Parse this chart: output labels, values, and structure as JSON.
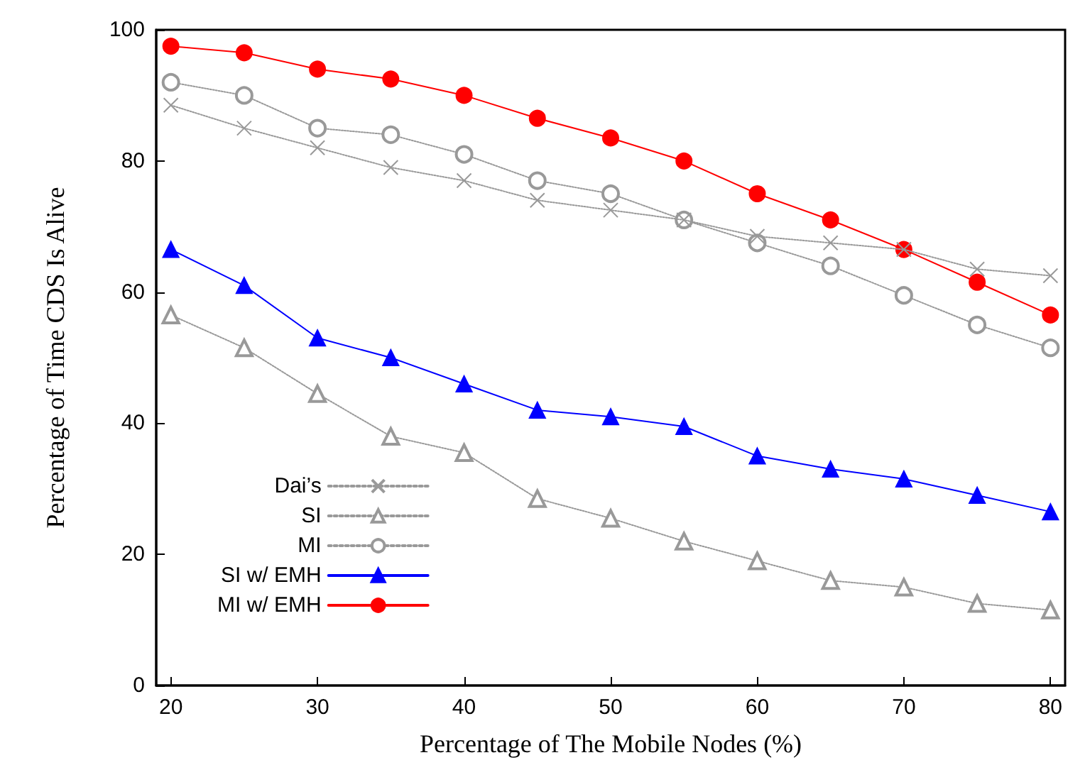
{
  "chart_data": {
    "type": "line",
    "xlabel": "Percentage of The Mobile Nodes (%)",
    "ylabel": "Percentage of Time CDS Is Alive",
    "x": [
      20,
      25,
      30,
      35,
      40,
      45,
      50,
      55,
      60,
      65,
      70,
      75,
      80
    ],
    "xlim": [
      19,
      81
    ],
    "xticks": [
      20,
      30,
      40,
      50,
      60,
      70,
      80
    ],
    "ylim": [
      0,
      100
    ],
    "yticks": [
      0,
      20,
      40,
      60,
      80,
      100
    ],
    "grid": false,
    "legend": "left",
    "series": [
      {
        "name": "Dai’s",
        "color": "#999999",
        "marker": "cross",
        "line_style": "dotted",
        "values": [
          88.5,
          85,
          82,
          79,
          77,
          74,
          72.5,
          71,
          68.5,
          67.5,
          66.5,
          63.5,
          62.5
        ]
      },
      {
        "name": "SI",
        "color": "#999999",
        "marker": "triangle",
        "line_style": "dotted",
        "values": [
          56.5,
          51.5,
          44.5,
          38,
          35.5,
          28.5,
          25.5,
          22,
          19,
          16,
          15,
          12.5,
          11.5
        ]
      },
      {
        "name": "MI",
        "color": "#999999",
        "marker": "circle",
        "line_style": "dotted",
        "values": [
          92,
          90,
          85,
          84,
          81,
          77,
          75,
          71,
          67.5,
          64,
          59.5,
          55,
          51.5
        ]
      },
      {
        "name": "SI w/ EMH",
        "color": "#0000ff",
        "marker": "triangle",
        "line_style": "solid",
        "values": [
          66.5,
          61,
          53,
          50,
          46,
          42,
          41,
          39.5,
          35,
          33,
          31.5,
          29,
          26.5
        ]
      },
      {
        "name": "MI w/ EMH",
        "color": "#ff0000",
        "marker": "circle",
        "line_style": "solid",
        "values": [
          97.5,
          96.5,
          94,
          92.5,
          90,
          86.5,
          83.5,
          80,
          75,
          71,
          66.5,
          61.5,
          56.5
        ]
      }
    ]
  }
}
